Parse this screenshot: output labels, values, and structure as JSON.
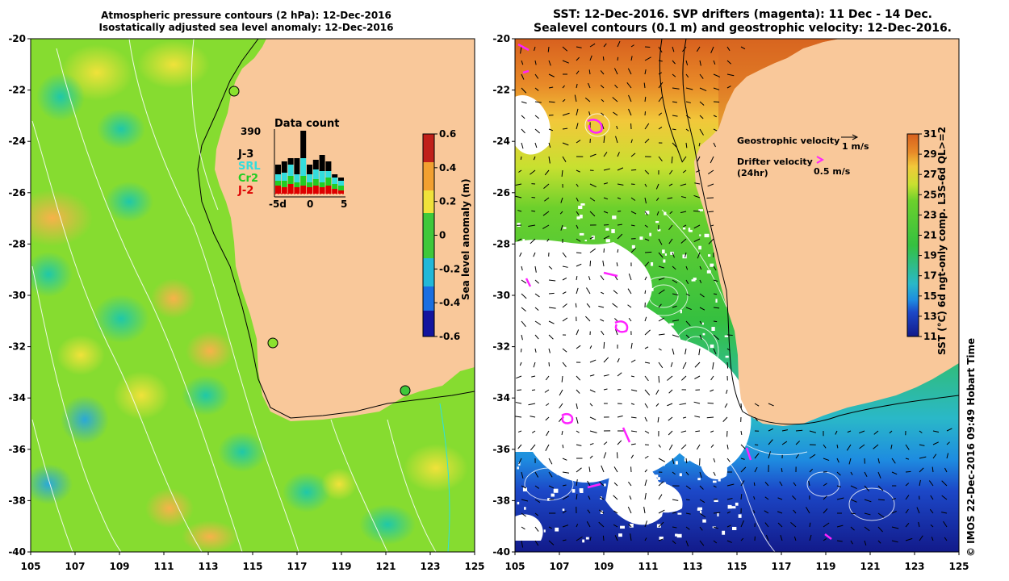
{
  "left_panel": {
    "title_line1": "Atmospheric pressure contours (2 hPa): 12-Dec-2016",
    "title_line2": "Isostatically adjusted sea level anomaly: 12-Dec-2016",
    "y_ticks": [
      "-20",
      "-22",
      "-24",
      "-26",
      "-28",
      "-30",
      "-32",
      "-34",
      "-36",
      "-38",
      "-40"
    ],
    "x_ticks": [
      "105",
      "107",
      "109",
      "111",
      "113",
      "115",
      "117",
      "119",
      "121",
      "123",
      "125"
    ],
    "colorbar": {
      "label": "Sea level anomaly (m)",
      "ticks": [
        "0.6",
        "0.4",
        "0.2",
        "0",
        "-0.2",
        "-0.4",
        "-0.6"
      ]
    },
    "inset": {
      "title": "Data count",
      "max_count": "390",
      "x_ticks": [
        "-5d",
        "0",
        "5"
      ],
      "legend": [
        {
          "label": "J-3",
          "color": "#000000"
        },
        {
          "label": "SRL",
          "color": "#33dddd"
        },
        {
          "label": "Cr2",
          "color": "#22cc22"
        },
        {
          "label": "J-2",
          "color": "#dd0000"
        }
      ]
    },
    "tide_gauges": [
      "gauge-1",
      "gauge-2",
      "gauge-3"
    ]
  },
  "right_panel": {
    "title_line1": "SST: 12-Dec-2016. SVP drifters (magenta): 11 Dec - 14 Dec.",
    "title_line2": "Sealevel contours (0.1 m) and geostrophic velocity: 12-Dec-2016.",
    "y_ticks": [
      "-20",
      "-22",
      "-24",
      "-26",
      "-28",
      "-30",
      "-32",
      "-34",
      "-36",
      "-38",
      "-40"
    ],
    "x_ticks": [
      "105",
      "107",
      "109",
      "111",
      "113",
      "115",
      "117",
      "119",
      "121",
      "123",
      "125"
    ],
    "legend": {
      "geostrophic_label": "Geostrophic velocity",
      "geostrophic_scale": "1 m/s",
      "drifter_label": "Drifter velocity",
      "drifter_sub": "(24hr)",
      "drifter_scale": "0.5 m/s"
    },
    "colorbar": {
      "label": "SST (°C) 6d ngt-only comp. L3S-6d QL>=2",
      "ticks": [
        "31",
        "29",
        "27",
        "25",
        "23",
        "21",
        "19",
        "17",
        "15",
        "13",
        "11"
      ]
    }
  },
  "credit": "© IMOS 22-Dec-2016 09:49 Hobart Time",
  "colors": {
    "land": "#f9c89a",
    "sla_green": "#8be22e",
    "sst_green": "#3fc83a",
    "drifter": "#ff22ff"
  }
}
